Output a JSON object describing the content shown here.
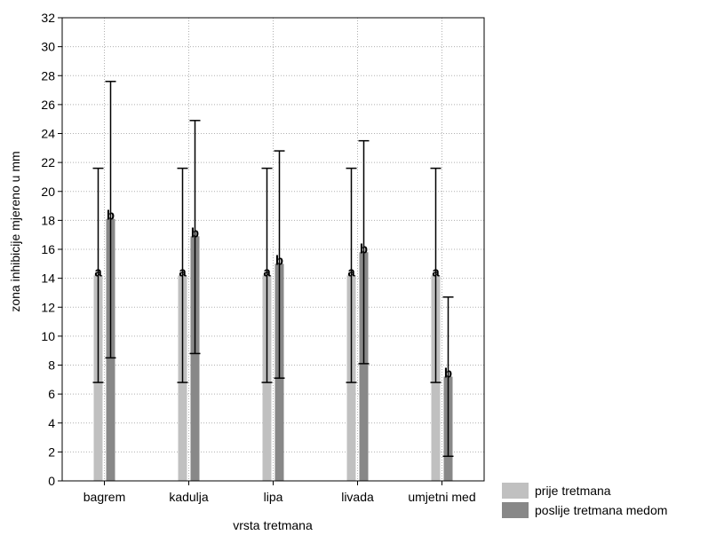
{
  "chart_data": {
    "type": "bar",
    "xlabel": "vrsta tretmana",
    "ylabel": "zona inhibicije mjereno u mm",
    "ylim": [
      0,
      32
    ],
    "yticks": [
      0,
      2,
      4,
      6,
      8,
      10,
      12,
      14,
      16,
      18,
      20,
      22,
      24,
      26,
      28,
      30,
      32
    ],
    "grid": true,
    "legend_position": "bottom-right",
    "categories": [
      "bagrem",
      "kadulja",
      "lipa",
      "livada",
      "umjetni med"
    ],
    "series": [
      {
        "name": "prije tretmana",
        "color": "#c0c0c0",
        "values": [
          14.2,
          14.2,
          14.2,
          14.2,
          14.2
        ],
        "err_low": [
          6.8,
          6.8,
          6.8,
          6.8,
          6.8
        ],
        "err_high": [
          21.6,
          21.6,
          21.6,
          21.6,
          21.6
        ],
        "labels": [
          "a",
          "a",
          "a",
          "a",
          "a"
        ]
      },
      {
        "name": "poslije tretmana medom",
        "color": "#888888",
        "values": [
          18.1,
          16.9,
          15.0,
          15.8,
          7.2
        ],
        "err_low": [
          8.5,
          8.8,
          7.1,
          8.1,
          1.7
        ],
        "err_high": [
          27.6,
          24.9,
          22.8,
          23.5,
          12.7
        ],
        "labels": [
          "b",
          "b",
          "b",
          "b",
          "b"
        ]
      }
    ]
  }
}
